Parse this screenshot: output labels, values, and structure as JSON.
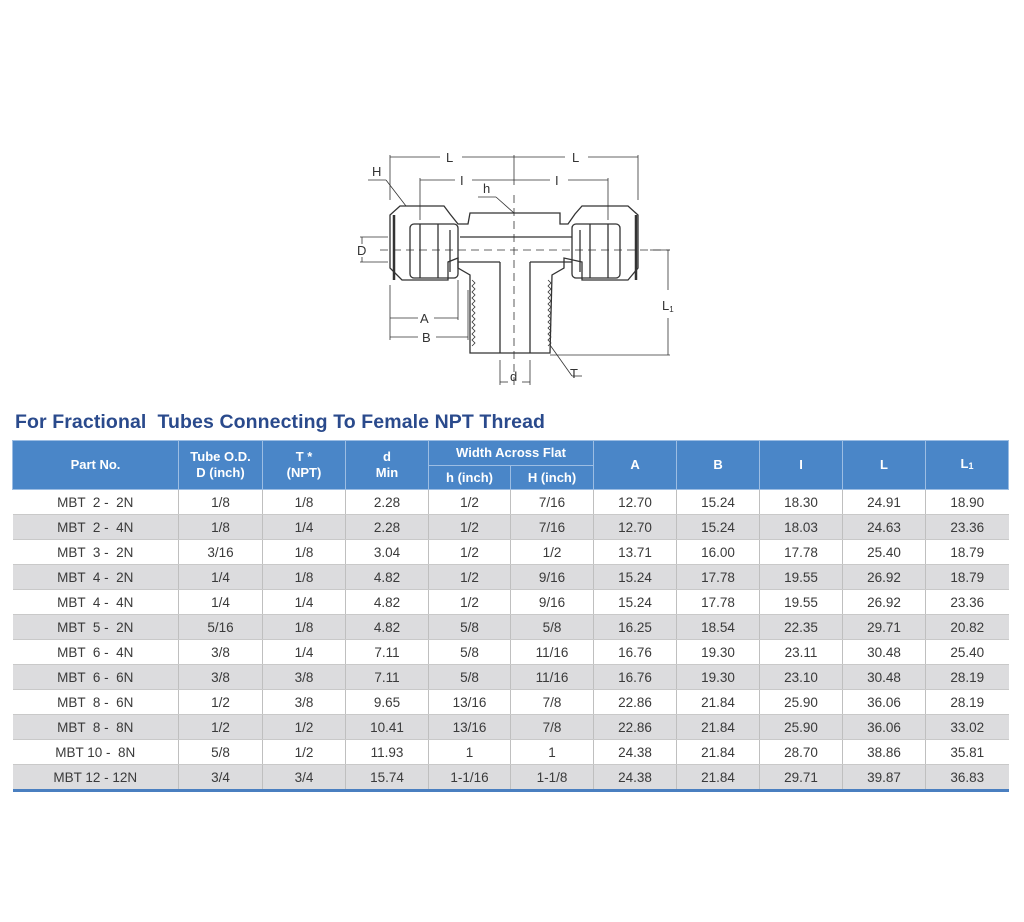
{
  "diagram": {
    "labels": {
      "L_left": "L",
      "L_right": "L",
      "I_left": "I",
      "I_right": "I",
      "H": "H",
      "h": "h",
      "D": "D",
      "A": "A",
      "B": "B",
      "L1": "L",
      "L1_sub": "1",
      "d": "d",
      "T": "T"
    }
  },
  "title": "For Fractional  Tubes Connecting To Female NPT Thread",
  "table": {
    "headers": {
      "part_no": "Part No.",
      "tube_od_line1": "Tube O.D.",
      "tube_od_line2": "D (inch)",
      "t_line1": "T *",
      "t_line2": "(NPT)",
      "d_line1": "d",
      "d_line2": "Min",
      "width_across_flat": "Width Across Flat",
      "h_inch": "h (inch)",
      "H_inch": "H (inch)",
      "A": "A",
      "B": "B",
      "I": "I",
      "L": "L",
      "L1": "L",
      "L1_sub": "1"
    },
    "rows": [
      {
        "part": "MBT  2 -  2N",
        "tube_od": "1/8",
        "t": "1/8",
        "d": "2.28",
        "h": "1/2",
        "H": "7/16",
        "A": "12.70",
        "B": "15.24",
        "I": "18.30",
        "L": "24.91",
        "L1": "18.90"
      },
      {
        "part": "MBT  2 -  4N",
        "tube_od": "1/8",
        "t": "1/4",
        "d": "2.28",
        "h": "1/2",
        "H": "7/16",
        "A": "12.70",
        "B": "15.24",
        "I": "18.03",
        "L": "24.63",
        "L1": "23.36"
      },
      {
        "part": "MBT  3 -  2N",
        "tube_od": "3/16",
        "t": "1/8",
        "d": "3.04",
        "h": "1/2",
        "H": "1/2",
        "A": "13.71",
        "B": "16.00",
        "I": "17.78",
        "L": "25.40",
        "L1": "18.79"
      },
      {
        "part": "MBT  4 -  2N",
        "tube_od": "1/4",
        "t": "1/8",
        "d": "4.82",
        "h": "1/2",
        "H": "9/16",
        "A": "15.24",
        "B": "17.78",
        "I": "19.55",
        "L": "26.92",
        "L1": "18.79"
      },
      {
        "part": "MBT  4 -  4N",
        "tube_od": "1/4",
        "t": "1/4",
        "d": "4.82",
        "h": "1/2",
        "H": "9/16",
        "A": "15.24",
        "B": "17.78",
        "I": "19.55",
        "L": "26.92",
        "L1": "23.36"
      },
      {
        "part": "MBT  5 -  2N",
        "tube_od": "5/16",
        "t": "1/8",
        "d": "4.82",
        "h": "5/8",
        "H": "5/8",
        "A": "16.25",
        "B": "18.54",
        "I": "22.35",
        "L": "29.71",
        "L1": "20.82"
      },
      {
        "part": "MBT  6 -  4N",
        "tube_od": "3/8",
        "t": "1/4",
        "d": "7.11",
        "h": "5/8",
        "H": "11/16",
        "A": "16.76",
        "B": "19.30",
        "I": "23.11",
        "L": "30.48",
        "L1": "25.40"
      },
      {
        "part": "MBT  6 -  6N",
        "tube_od": "3/8",
        "t": "3/8",
        "d": "7.11",
        "h": "5/8",
        "H": "11/16",
        "A": "16.76",
        "B": "19.30",
        "I": "23.10",
        "L": "30.48",
        "L1": "28.19"
      },
      {
        "part": "MBT  8 -  6N",
        "tube_od": "1/2",
        "t": "3/8",
        "d": "9.65",
        "h": "13/16",
        "H": "7/8",
        "A": "22.86",
        "B": "21.84",
        "I": "25.90",
        "L": "36.06",
        "L1": "28.19"
      },
      {
        "part": "MBT  8 -  8N",
        "tube_od": "1/2",
        "t": "1/2",
        "d": "10.41",
        "h": "13/16",
        "H": "7/8",
        "A": "22.86",
        "B": "21.84",
        "I": "25.90",
        "L": "36.06",
        "L1": "33.02"
      },
      {
        "part": "MBT 10 -  8N",
        "tube_od": "5/8",
        "t": "1/2",
        "d": "11.93",
        "h": "1",
        "H": "1",
        "A": "24.38",
        "B": "21.84",
        "I": "28.70",
        "L": "38.86",
        "L1": "35.81"
      },
      {
        "part": "MBT 12 - 12N",
        "tube_od": "3/4",
        "t": "3/4",
        "d": "15.74",
        "h": "1-1/16",
        "H": "1-1/8",
        "A": "24.38",
        "B": "21.84",
        "I": "29.71",
        "L": "39.87",
        "L1": "36.83"
      }
    ]
  },
  "colors": {
    "title": "#2a4a8c",
    "header_bg": "#4a86c8",
    "header_text": "#ffffff",
    "row_alt_bg": "#dcdcde",
    "bottom_rule": "#4a7fc0"
  }
}
